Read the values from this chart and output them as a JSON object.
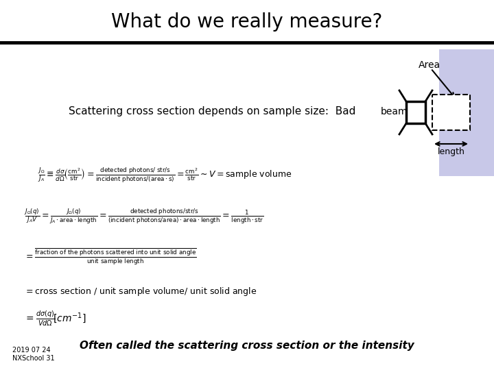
{
  "title": "What do we really measure?",
  "title_fontsize": 20,
  "bg_color": "#ffffff",
  "header_line_color": "#000000",
  "text_color": "#000000",
  "scatter_label": "Scattering cross section depends on sample size:  Bad",
  "scatter_label_fontsize": 11,
  "area_label": "Area",
  "beam_label": "beam",
  "length_label": "length",
  "area_rect_color": "#c8c8e8",
  "footer": "Often called the scattering cross section or the intensity",
  "footer_fontsize": 11,
  "date_label": "2019 07 24\nNXSchool 31",
  "date_fontsize": 7,
  "eq_fontsize": 9
}
